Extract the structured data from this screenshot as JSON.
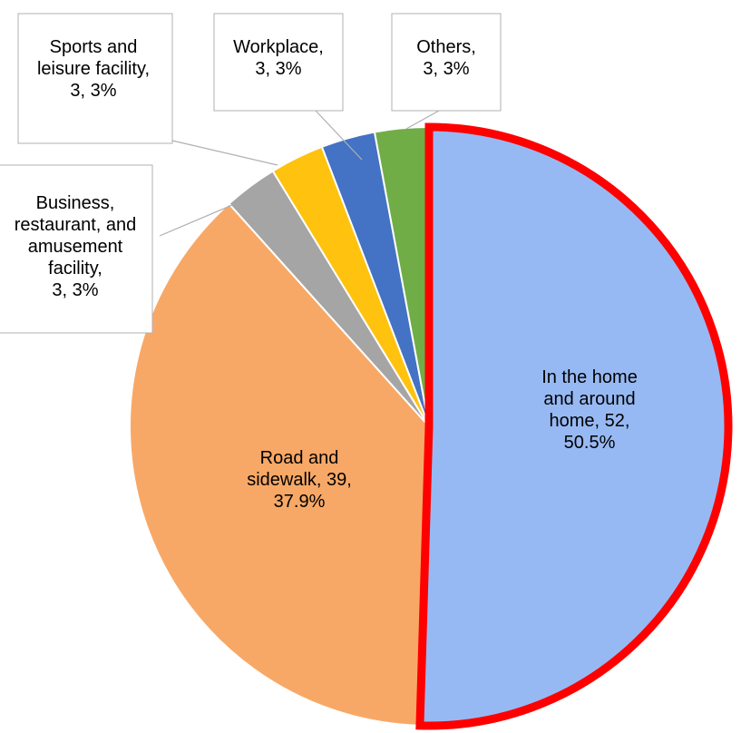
{
  "chart_data": {
    "type": "pie",
    "title": "",
    "slices": [
      {
        "name": "In the home and around home",
        "value": 52,
        "percent": "50.5%",
        "color": "#97b9f3",
        "highlighted": true,
        "label_lines": [
          "In the home",
          "and around",
          "home, 52,",
          "50.5%"
        ]
      },
      {
        "name": "Road and sidewalk",
        "value": 39,
        "percent": "37.9%",
        "color": "#f8a866",
        "label_lines": [
          "Road and",
          "sidewalk, 39,",
          "37.9%"
        ]
      },
      {
        "name": "Business, restaurant, and amusement facility",
        "value": 3,
        "percent": "3%",
        "color": "#a5a5a5",
        "label_lines": [
          "Business,",
          "restaurant, and",
          "amusement",
          "facility,",
          "3, 3%"
        ]
      },
      {
        "name": "Sports and leisure facility",
        "value": 3,
        "percent": "3%",
        "color": "#ffc20e",
        "label_lines": [
          "Sports and",
          "leisure facility,",
          "3, 3%"
        ]
      },
      {
        "name": "Workplace",
        "value": 3,
        "percent": "3%",
        "color": "#4472c4",
        "label_lines": [
          "Workplace,",
          "3, 3%"
        ]
      },
      {
        "name": "Others",
        "value": 3,
        "percent": "3%",
        "color": "#70ad47",
        "label_lines": [
          "Others,",
          "3, 3%"
        ]
      }
    ],
    "highlight_color": "#ff0000",
    "legend": "none"
  }
}
